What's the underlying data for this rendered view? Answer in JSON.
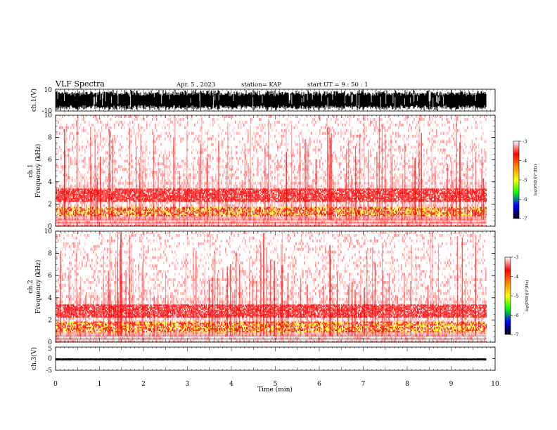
{
  "header": {
    "title": "VLF Spectra",
    "date": "Apr. 5 , 2023",
    "station": "station= KAP",
    "start_ut": "start UT = 9 : 50 : 1"
  },
  "x_axis": {
    "label": "Time (min)",
    "ticks": [
      "0",
      "1",
      "2",
      "3",
      "4",
      "5",
      "6",
      "7",
      "8",
      "9",
      "10"
    ]
  },
  "chart_data": [
    {
      "type": "line",
      "id": "ch1-waveform",
      "ylabel": "ch.1(V)",
      "ylim": [
        -10,
        10
      ],
      "y_tick_labels": [
        "10",
        "-10"
      ],
      "x_range_min": [
        0,
        10
      ],
      "data_extent_min": 9.8,
      "note_level": "fills most of the range"
    },
    {
      "type": "heatmap",
      "id": "ch1-spectrogram",
      "ylabel": "Frequency (kHz)",
      "channel_label": "ch.1",
      "ylim_khz": [
        0,
        10
      ],
      "y_tick_labels": [
        "0",
        "2",
        "4",
        "6",
        "8",
        "10"
      ],
      "x_range_min": [
        0,
        10
      ],
      "data_extent_min": 9.8,
      "intense_bands_khz": [
        [
          0.9,
          1.7
        ],
        [
          2.2,
          3.3
        ]
      ],
      "gap_band_khz": [
        0,
        0.5
      ],
      "colorbar": {
        "label": "log(PSD)(V²/Hz)",
        "ticks": [
          "-3",
          "-4",
          "-5",
          "-6",
          "-7"
        ],
        "range": [
          -7,
          -3
        ],
        "colors": [
          "#000000",
          "#0000ff",
          "#00ff00",
          "#ffff00",
          "#ff8800",
          "#ff0000",
          "#ffffff"
        ]
      }
    },
    {
      "type": "heatmap",
      "id": "ch2-spectrogram",
      "ylabel": "Frequency (kHz)",
      "channel_label": "ch.2",
      "ylim_khz": [
        0,
        10
      ],
      "y_tick_labels": [
        "0",
        "2",
        "4",
        "6",
        "8",
        "10"
      ],
      "x_range_min": [
        0,
        10
      ],
      "data_extent_min": 9.8,
      "intense_bands_khz": [
        [
          0.9,
          1.8
        ],
        [
          2.2,
          3.4
        ]
      ],
      "gap_band_khz": [
        0,
        0.5
      ],
      "colorbar": {
        "label": "log(PSD)(V²/Hz)",
        "ticks": [
          "-3",
          "-4",
          "-5",
          "-6",
          "-7"
        ],
        "range": [
          -7,
          -3
        ],
        "colors": [
          "#000000",
          "#0000ff",
          "#00ff00",
          "#ffff00",
          "#ff8800",
          "#ff0000",
          "#ffffff"
        ]
      }
    },
    {
      "type": "line",
      "id": "ch3-waveform",
      "ylabel": "ch.3(V)",
      "ylim": [
        -5,
        5
      ],
      "y_tick_labels": [
        "5",
        "0",
        "-5"
      ],
      "x_range_min": [
        0,
        10
      ],
      "data_extent_min": 9.8,
      "baseline_v": -0.3,
      "amplitude_v": 0.5
    }
  ],
  "colors": {
    "spectrogram_low": "#ffffff",
    "spectrogram_mid": "#ff0000",
    "spectrogram_high": "#ffff00",
    "waveform": "#000000"
  }
}
